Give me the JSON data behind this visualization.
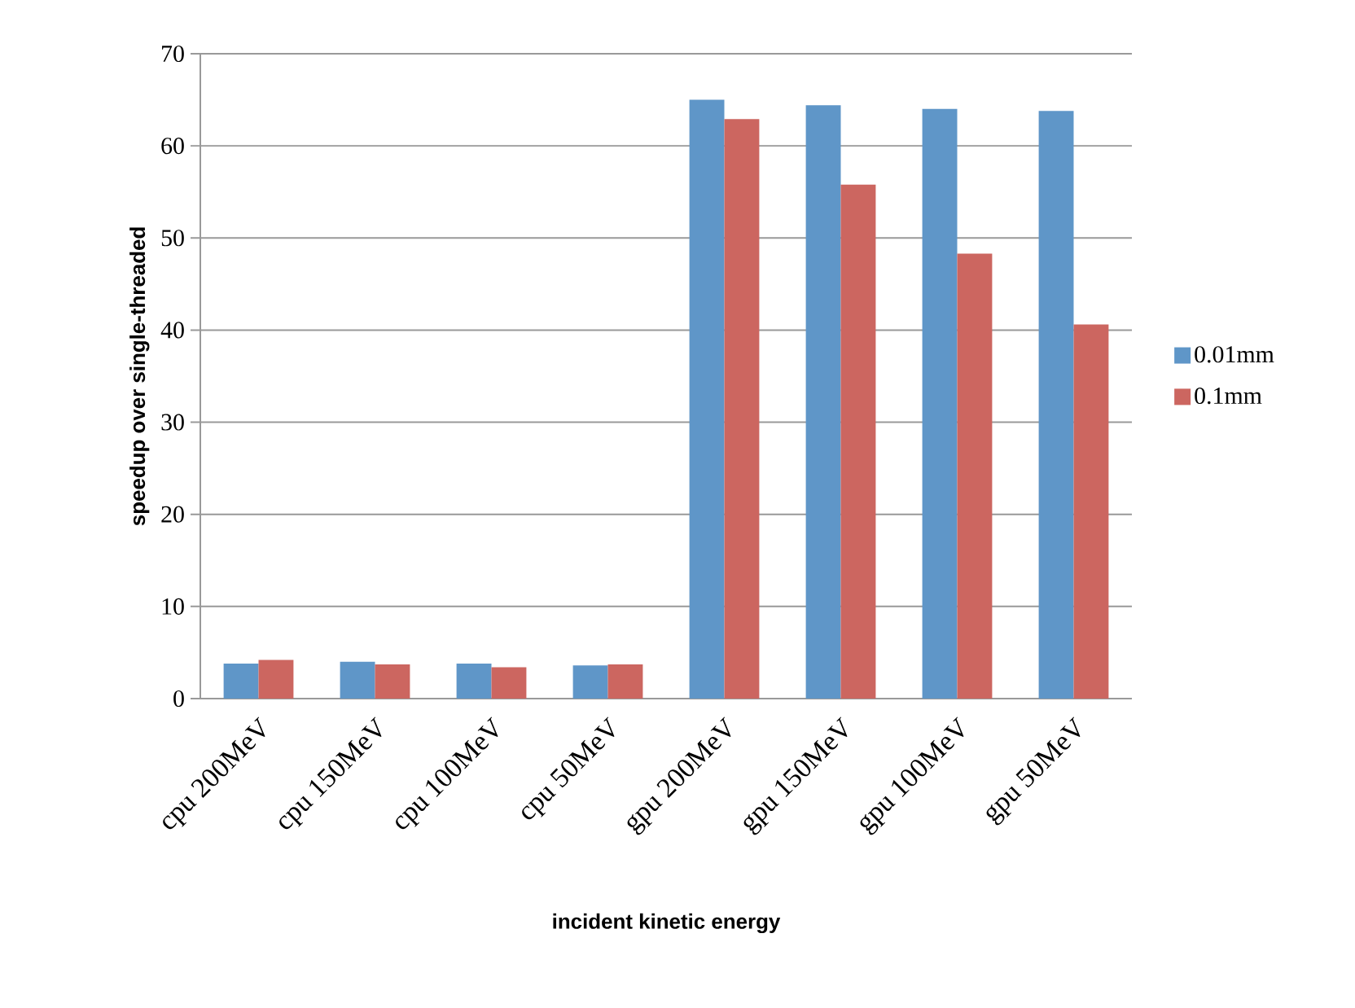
{
  "chart_data": {
    "type": "bar",
    "xlabel": "incident kinetic energy",
    "ylabel": "speedup over single-threaded",
    "categories": [
      "cpu 200MeV",
      "cpu 150MeV",
      "cpu 100MeV",
      "cpu 50MeV",
      "gpu 200MeV",
      "gpu 150MeV",
      "gpu 100MeV",
      "gpu 50MeV"
    ],
    "series": [
      {
        "name": "0.01mm",
        "color": "#5f96c8",
        "values": [
          3.8,
          4.0,
          3.8,
          3.6,
          65.0,
          64.4,
          64.0,
          63.8
        ]
      },
      {
        "name": "0.1mm",
        "color": "#cc6660",
        "values": [
          4.2,
          3.7,
          3.4,
          3.7,
          62.9,
          55.8,
          48.3,
          40.6
        ]
      }
    ],
    "ylim": [
      0,
      70
    ],
    "yticks": [
      0,
      10,
      20,
      30,
      40,
      50,
      60,
      70
    ],
    "grid": "y",
    "legend": "right"
  }
}
